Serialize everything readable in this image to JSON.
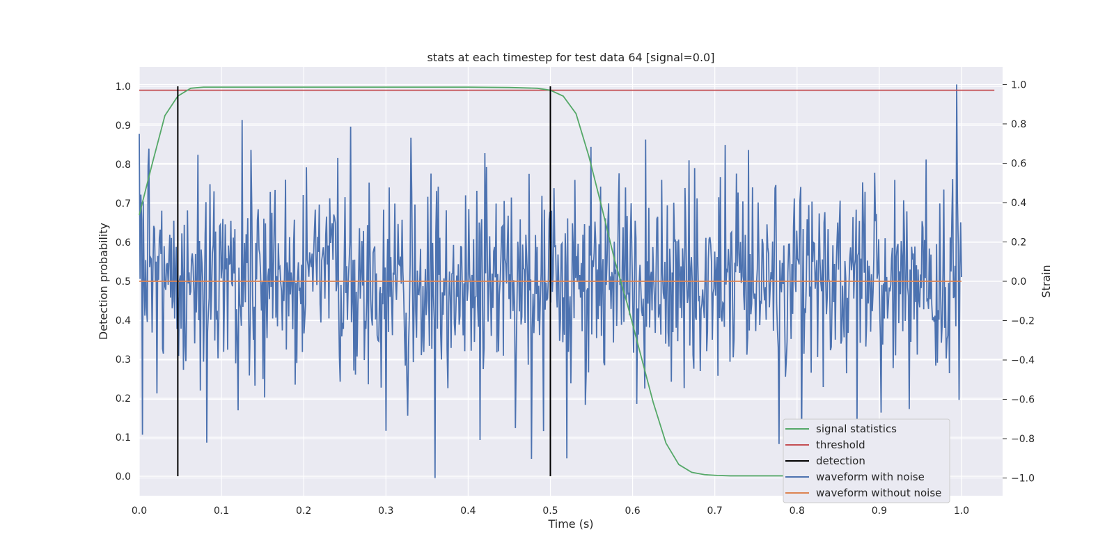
{
  "chart_data": {
    "type": "line",
    "title": "stats at each timestep for test data 64 [signal=0.0]",
    "xlabel": "Time (s)",
    "ylabel": "Detection probability",
    "y2label": "Strain",
    "xlim": [
      0.0,
      1.05
    ],
    "ylim": [
      -0.05,
      1.05
    ],
    "y2lim": [
      -1.09,
      1.09
    ],
    "xticks": [
      "0.0",
      "0.1",
      "0.2",
      "0.3",
      "0.4",
      "0.5",
      "0.6",
      "0.7",
      "0.8",
      "0.9",
      "1.0"
    ],
    "yticks": [
      "0.0",
      "0.1",
      "0.2",
      "0.3",
      "0.4",
      "0.5",
      "0.6",
      "0.7",
      "0.8",
      "0.9",
      "1.0"
    ],
    "y2ticks": [
      "−1.0",
      "−0.8",
      "−0.6",
      "−0.4",
      "−0.2",
      "0.0",
      "0.2",
      "0.4",
      "0.6",
      "0.8",
      "1.0"
    ],
    "grid": true,
    "legend_position": "lower-right",
    "colors": {
      "signal_statistics": "#55a868",
      "threshold": "#c44e52",
      "detection": "#000000",
      "waveform_with_noise": "#4c72b0",
      "waveform_without_noise": "#dd8452",
      "plot_bg": "#eaeaf2",
      "grid": "#ffffff"
    },
    "series": [
      {
        "name": "signal statistics",
        "axis": "left",
        "x": [
          0.0,
          0.0156,
          0.0312,
          0.0469,
          0.0625,
          0.0781,
          0.1,
          0.2,
          0.3,
          0.4,
          0.45,
          0.4844,
          0.5,
          0.5156,
          0.5312,
          0.5469,
          0.5625,
          0.5781,
          0.5938,
          0.6094,
          0.625,
          0.6406,
          0.6562,
          0.6719,
          0.6875,
          0.7031,
          0.7188,
          0.75,
          0.8,
          0.9,
          0.98
        ],
        "y": [
          0.67,
          0.8,
          0.925,
          0.975,
          0.995,
          0.998,
          0.998,
          0.998,
          0.998,
          0.998,
          0.997,
          0.995,
          0.99,
          0.975,
          0.93,
          0.82,
          0.69,
          0.555,
          0.44,
          0.315,
          0.19,
          0.085,
          0.03,
          0.01,
          0.004,
          0.002,
          0.001,
          0.001,
          0.001,
          0.001,
          0.001
        ]
      },
      {
        "name": "threshold",
        "axis": "left",
        "x": [
          0.0,
          1.04
        ],
        "y": [
          0.99,
          0.99
        ]
      },
      {
        "name": "detection",
        "axis": "left",
        "x": [
          0.0469,
          0.5
        ],
        "ymin": 0.0,
        "ymax": 1.0
      },
      {
        "name": "waveform with noise",
        "axis": "right",
        "n_points": 1024,
        "x_range": [
          0.0,
          1.0
        ],
        "y_range": [
          -1.0,
          1.0
        ],
        "noise_std": 0.25,
        "highlights": [
          {
            "x": 0.0,
            "y": 0.75
          },
          {
            "x": 0.004,
            "y": -0.78
          },
          {
            "x": 0.0215,
            "y": -0.57
          },
          {
            "x": 0.054,
            "y": -0.45
          },
          {
            "x": 0.082,
            "y": -0.82
          },
          {
            "x": 0.125,
            "y": 0.82
          },
          {
            "x": 0.3,
            "y": -0.76
          },
          {
            "x": 0.36,
            "y": -1.0
          },
          {
            "x": 0.33,
            "y": 0.73
          },
          {
            "x": 0.616,
            "y": 0.72
          },
          {
            "x": 0.994,
            "y": 1.0
          },
          {
            "x": 0.52,
            "y": -0.9
          }
        ]
      },
      {
        "name": "waveform without noise",
        "axis": "right",
        "x": [
          0.0,
          1.0
        ],
        "y": [
          0.0,
          0.0
        ]
      }
    ]
  }
}
